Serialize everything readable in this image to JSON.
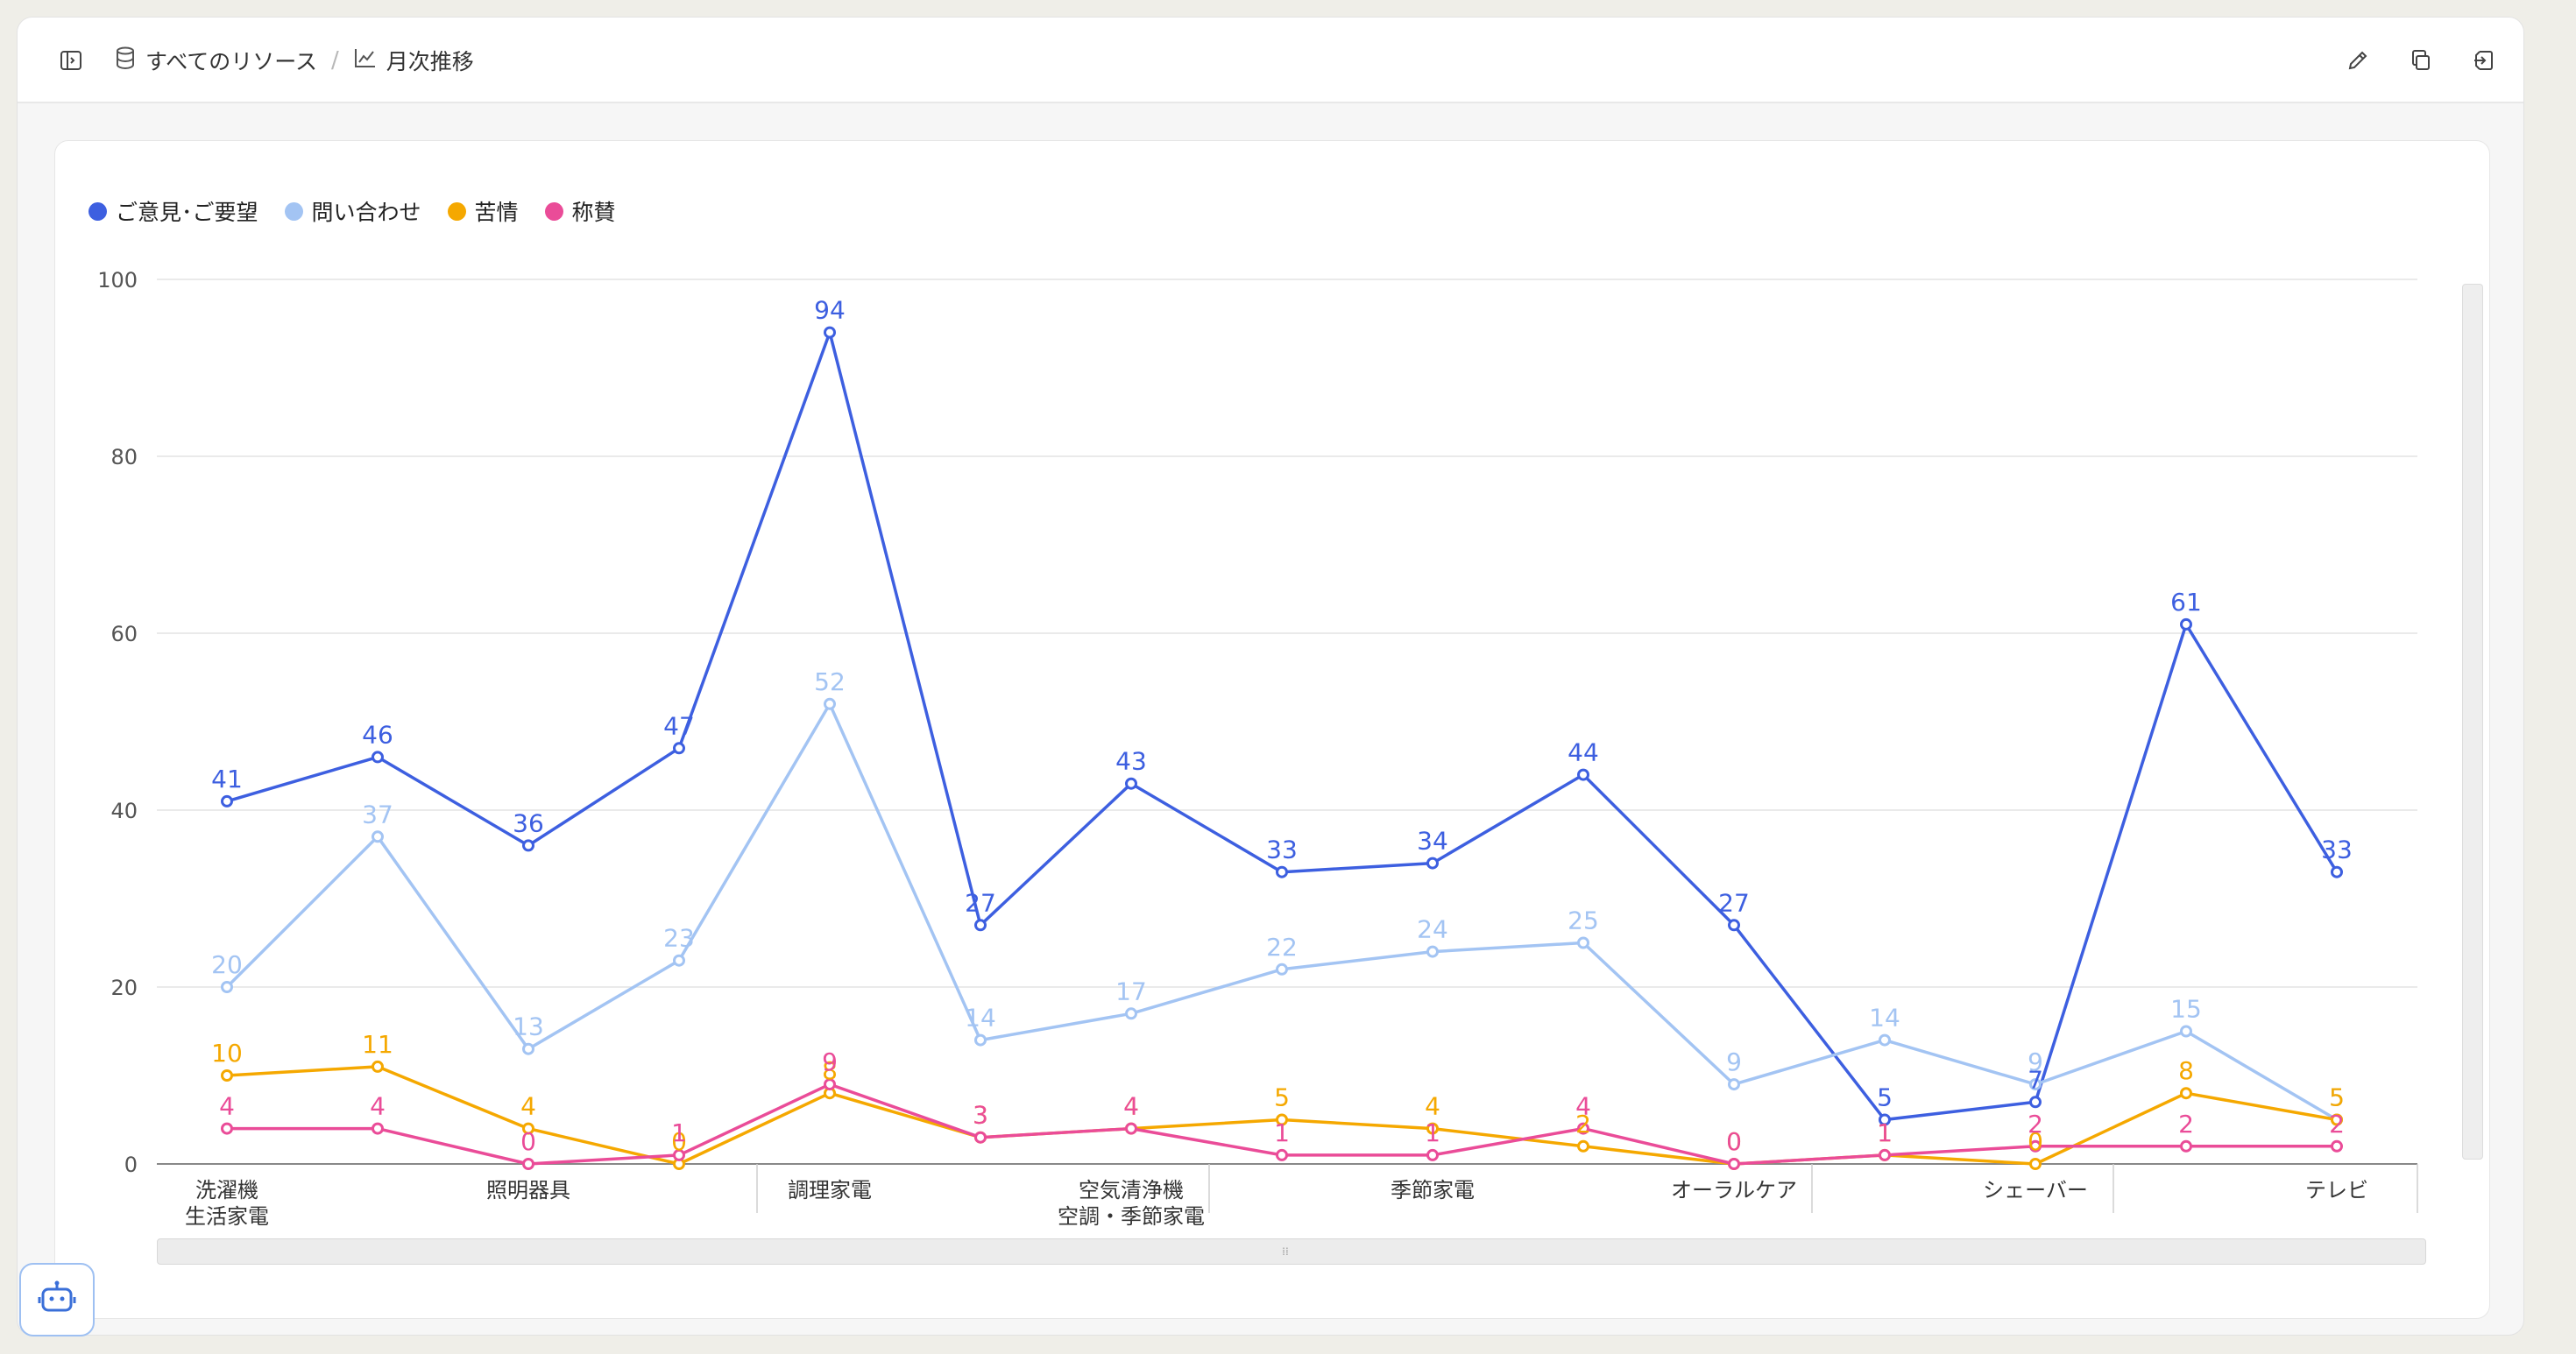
{
  "breadcrumb": {
    "root_label": "すべてのリソース",
    "separator": "/",
    "current_label": "月次推移"
  },
  "icons": {
    "sidebar_toggle": "sidebar-toggle-icon",
    "database": "database-icon",
    "chart": "line-chart-icon",
    "edit": "pencil-icon",
    "copy": "copy-icon",
    "export": "export-icon",
    "assistant": "robot-icon"
  },
  "chart_data": {
    "type": "line",
    "ylim": [
      0,
      100
    ],
    "yticks": [
      "0",
      "20",
      "40",
      "60",
      "80",
      "100"
    ],
    "x": [
      "洗濯機",
      "",
      "照明器具",
      "",
      "調理家電",
      "",
      "空気清浄機",
      "",
      "季節家電",
      "",
      "オーラルケア",
      "",
      "シェーバー",
      "",
      "テレビ"
    ],
    "x_labels": [
      {
        "text": "洗濯機"
      },
      {
        "text": "照明器具"
      },
      {
        "text": "調理家電"
      },
      {
        "text": "空気清浄機"
      },
      {
        "text": "季節家電"
      },
      {
        "text": "オーラルケア"
      },
      {
        "text": "シェーバー"
      },
      {
        "text": "テレビ"
      }
    ],
    "groups": [
      {
        "label": "生活家電"
      },
      {
        "label": "空調・季節家電"
      }
    ],
    "series": [
      {
        "name": "ご意見･ご要望",
        "color": "#3d5fe0",
        "values": [
          41,
          46,
          36,
          47,
          94,
          27,
          43,
          33,
          34,
          44,
          27,
          5,
          7,
          61,
          33
        ]
      },
      {
        "name": "問い合わせ",
        "color": "#a3c4f3",
        "values": [
          20,
          37,
          13,
          23,
          52,
          14,
          17,
          22,
          24,
          25,
          9,
          14,
          9,
          15,
          5
        ]
      },
      {
        "name": "苦情",
        "color": "#f5a800",
        "values": [
          10,
          11,
          4,
          0,
          8,
          3,
          4,
          5,
          4,
          2,
          0,
          1,
          0,
          8,
          5
        ]
      },
      {
        "name": "称賛",
        "color": "#ea4c98",
        "values": [
          4,
          4,
          0,
          1,
          9,
          3,
          4,
          1,
          1,
          4,
          0,
          1,
          2,
          2,
          2
        ]
      }
    ],
    "legend_position": "top-left",
    "grid": true
  }
}
